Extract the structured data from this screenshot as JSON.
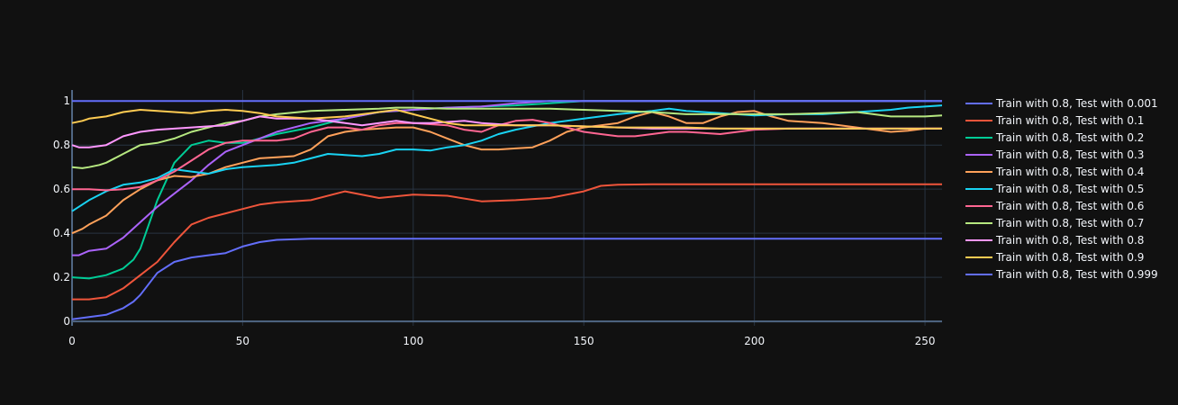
{
  "chart_data": {
    "type": "line",
    "title": "",
    "xlabel": "",
    "ylabel": "",
    "xlim": [
      0,
      255
    ],
    "ylim": [
      -0.02,
      1.05
    ],
    "x_ticks": [
      0,
      50,
      100,
      150,
      200,
      250
    ],
    "y_ticks": [
      0,
      0.2,
      0.4,
      0.6,
      0.8,
      1
    ],
    "x_tick_labels": [
      "0",
      "50",
      "100",
      "150",
      "200",
      "250"
    ],
    "y_tick_labels": [
      "0",
      "0.2",
      "0.4",
      "0.6",
      "0.8",
      "1"
    ],
    "grid": true,
    "legend_position": "right",
    "background": "#111111",
    "grid_color": "#283442",
    "series": [
      {
        "name": "Train with 0.8, Test with 0.001",
        "color": "#636efa",
        "x": [
          0,
          5,
          10,
          15,
          18,
          20,
          25,
          30,
          35,
          40,
          45,
          50,
          55,
          60,
          70,
          80,
          100,
          150,
          200,
          255
        ],
        "y": [
          0.01,
          0.02,
          0.03,
          0.06,
          0.09,
          0.12,
          0.22,
          0.27,
          0.29,
          0.3,
          0.31,
          0.34,
          0.36,
          0.37,
          0.375,
          0.375,
          0.375,
          0.375,
          0.375,
          0.375
        ]
      },
      {
        "name": "Train with 0.8, Test with 0.1",
        "color": "#EF553B",
        "x": [
          0,
          5,
          10,
          15,
          20,
          25,
          30,
          35,
          40,
          45,
          50,
          55,
          60,
          70,
          80,
          90,
          100,
          110,
          120,
          130,
          140,
          150,
          155,
          160,
          170,
          180,
          200,
          255
        ],
        "y": [
          0.1,
          0.1,
          0.11,
          0.15,
          0.21,
          0.27,
          0.36,
          0.44,
          0.47,
          0.49,
          0.51,
          0.53,
          0.54,
          0.55,
          0.59,
          0.56,
          0.575,
          0.57,
          0.545,
          0.55,
          0.56,
          0.59,
          0.615,
          0.62,
          0.622,
          0.622,
          0.622,
          0.622
        ]
      },
      {
        "name": "Train with 0.8, Test with 0.2",
        "color": "#00cc96",
        "x": [
          0,
          5,
          10,
          15,
          18,
          20,
          25,
          30,
          35,
          40,
          45,
          50,
          55,
          60,
          70,
          80,
          90,
          100,
          110,
          120,
          130,
          140,
          150,
          155,
          160,
          170,
          180,
          200,
          255
        ],
        "y": [
          0.2,
          0.195,
          0.21,
          0.24,
          0.28,
          0.33,
          0.55,
          0.72,
          0.8,
          0.82,
          0.81,
          0.81,
          0.83,
          0.85,
          0.88,
          0.92,
          0.95,
          0.96,
          0.97,
          0.975,
          0.98,
          0.99,
          1.0,
          1.0,
          1.0,
          1.0,
          1.0,
          1.0,
          1.0
        ]
      },
      {
        "name": "Train with 0.8, Test with 0.3",
        "color": "#ab63fa",
        "x": [
          0,
          2,
          5,
          10,
          15,
          20,
          25,
          30,
          35,
          40,
          45,
          50,
          55,
          60,
          70,
          80,
          90,
          100,
          110,
          120,
          130,
          140,
          150,
          155,
          200,
          255
        ],
        "y": [
          0.3,
          0.3,
          0.32,
          0.33,
          0.38,
          0.45,
          0.52,
          0.58,
          0.64,
          0.71,
          0.77,
          0.8,
          0.83,
          0.86,
          0.9,
          0.92,
          0.95,
          0.96,
          0.97,
          0.975,
          0.99,
          1.0,
          1.0,
          1.0,
          1.0,
          1.0
        ]
      },
      {
        "name": "Train with 0.8, Test with 0.4",
        "color": "#FFA15A",
        "x": [
          0,
          3,
          5,
          10,
          15,
          20,
          25,
          30,
          35,
          40,
          45,
          50,
          55,
          60,
          65,
          70,
          75,
          80,
          85,
          90,
          95,
          100,
          105,
          110,
          115,
          120,
          125,
          130,
          135,
          140,
          145,
          150,
          155,
          160,
          165,
          170,
          175,
          180,
          185,
          190,
          195,
          200,
          205,
          210,
          220,
          230,
          240,
          245,
          250,
          255
        ],
        "y": [
          0.4,
          0.42,
          0.44,
          0.48,
          0.55,
          0.6,
          0.64,
          0.66,
          0.655,
          0.67,
          0.7,
          0.72,
          0.74,
          0.745,
          0.75,
          0.78,
          0.84,
          0.86,
          0.87,
          0.875,
          0.88,
          0.88,
          0.86,
          0.83,
          0.8,
          0.78,
          0.78,
          0.785,
          0.79,
          0.82,
          0.86,
          0.88,
          0.89,
          0.9,
          0.93,
          0.95,
          0.93,
          0.9,
          0.9,
          0.93,
          0.95,
          0.955,
          0.93,
          0.91,
          0.9,
          0.88,
          0.86,
          0.865,
          0.875,
          0.875
        ]
      },
      {
        "name": "Train with 0.8, Test with 0.5",
        "color": "#19d3f3",
        "x": [
          0,
          3,
          5,
          10,
          15,
          20,
          25,
          30,
          35,
          40,
          45,
          50,
          55,
          60,
          65,
          70,
          75,
          80,
          85,
          90,
          95,
          100,
          105,
          110,
          115,
          120,
          125,
          130,
          140,
          150,
          160,
          170,
          175,
          180,
          190,
          200,
          210,
          220,
          230,
          240,
          245,
          250,
          255
        ],
        "y": [
          0.5,
          0.53,
          0.55,
          0.59,
          0.62,
          0.63,
          0.65,
          0.69,
          0.68,
          0.67,
          0.69,
          0.7,
          0.705,
          0.71,
          0.72,
          0.74,
          0.76,
          0.755,
          0.75,
          0.76,
          0.78,
          0.78,
          0.775,
          0.79,
          0.8,
          0.82,
          0.85,
          0.87,
          0.9,
          0.92,
          0.94,
          0.955,
          0.965,
          0.955,
          0.945,
          0.935,
          0.94,
          0.94,
          0.95,
          0.96,
          0.97,
          0.975,
          0.98
        ]
      },
      {
        "name": "Train with 0.8, Test with 0.6",
        "color": "#FF6692",
        "x": [
          0,
          3,
          5,
          10,
          15,
          20,
          25,
          30,
          35,
          40,
          45,
          50,
          55,
          60,
          65,
          70,
          75,
          80,
          85,
          90,
          95,
          100,
          105,
          110,
          115,
          120,
          125,
          130,
          135,
          140,
          145,
          150,
          155,
          160,
          165,
          170,
          175,
          180,
          190,
          200,
          210,
          220,
          230,
          240,
          250,
          255
        ],
        "y": [
          0.6,
          0.6,
          0.6,
          0.595,
          0.6,
          0.61,
          0.64,
          0.68,
          0.73,
          0.78,
          0.81,
          0.82,
          0.82,
          0.82,
          0.83,
          0.86,
          0.88,
          0.88,
          0.87,
          0.89,
          0.9,
          0.9,
          0.895,
          0.89,
          0.87,
          0.86,
          0.89,
          0.91,
          0.915,
          0.9,
          0.88,
          0.86,
          0.85,
          0.84,
          0.84,
          0.85,
          0.86,
          0.86,
          0.85,
          0.87,
          0.875,
          0.875,
          0.875,
          0.875,
          0.875,
          0.875
        ]
      },
      {
        "name": "Train with 0.8, Test with 0.7",
        "color": "#B6E880",
        "x": [
          0,
          3,
          5,
          8,
          10,
          15,
          20,
          25,
          30,
          35,
          40,
          45,
          50,
          55,
          60,
          70,
          80,
          90,
          95,
          100,
          110,
          120,
          130,
          140,
          150,
          160,
          170,
          180,
          190,
          200,
          210,
          220,
          230,
          240,
          250,
          255
        ],
        "y": [
          0.7,
          0.695,
          0.7,
          0.71,
          0.72,
          0.76,
          0.8,
          0.81,
          0.83,
          0.86,
          0.88,
          0.9,
          0.91,
          0.93,
          0.94,
          0.955,
          0.96,
          0.965,
          0.97,
          0.97,
          0.965,
          0.965,
          0.965,
          0.965,
          0.96,
          0.955,
          0.95,
          0.94,
          0.94,
          0.94,
          0.94,
          0.945,
          0.95,
          0.93,
          0.93,
          0.935
        ]
      },
      {
        "name": "Train with 0.8, Test with 0.8",
        "color": "#FF97FF",
        "x": [
          0,
          2,
          5,
          10,
          15,
          20,
          25,
          30,
          35,
          40,
          45,
          50,
          55,
          60,
          70,
          80,
          85,
          90,
          95,
          100,
          105,
          110,
          115,
          120,
          125,
          130,
          140,
          150,
          160,
          170,
          180,
          190,
          200,
          255
        ],
        "y": [
          0.8,
          0.79,
          0.79,
          0.8,
          0.84,
          0.86,
          0.87,
          0.875,
          0.88,
          0.885,
          0.89,
          0.91,
          0.93,
          0.92,
          0.92,
          0.9,
          0.89,
          0.9,
          0.91,
          0.9,
          0.9,
          0.905,
          0.91,
          0.9,
          0.895,
          0.89,
          0.89,
          0.885,
          0.88,
          0.875,
          0.875,
          0.875,
          0.875,
          0.875
        ]
      },
      {
        "name": "Train with 0.8, Test with 0.9",
        "color": "#FECB52",
        "x": [
          0,
          3,
          5,
          10,
          15,
          20,
          25,
          30,
          35,
          40,
          45,
          50,
          55,
          60,
          70,
          80,
          90,
          95,
          100,
          105,
          110,
          115,
          120,
          130,
          140,
          150,
          160,
          170,
          180,
          190,
          200,
          255
        ],
        "y": [
          0.9,
          0.91,
          0.92,
          0.93,
          0.95,
          0.96,
          0.955,
          0.95,
          0.945,
          0.955,
          0.96,
          0.955,
          0.945,
          0.93,
          0.92,
          0.93,
          0.95,
          0.96,
          0.94,
          0.92,
          0.9,
          0.89,
          0.89,
          0.89,
          0.89,
          0.885,
          0.88,
          0.88,
          0.88,
          0.875,
          0.875,
          0.875
        ]
      },
      {
        "name": "Train with 0.8, Test with 0.999",
        "color": "#636efa",
        "x": [
          0,
          255
        ],
        "y": [
          1.0,
          1.0
        ]
      }
    ]
  }
}
